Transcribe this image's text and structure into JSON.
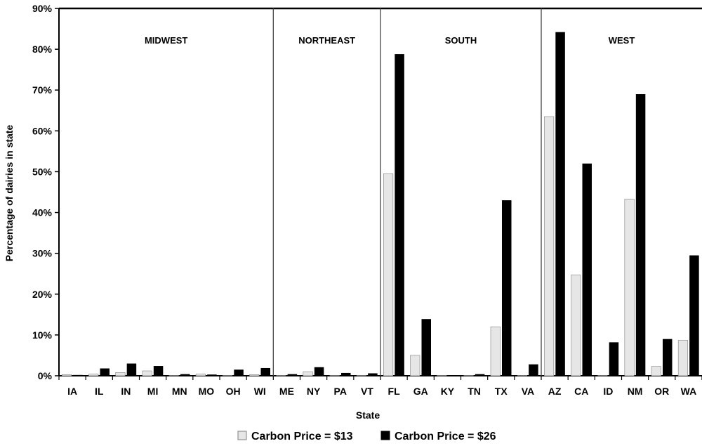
{
  "chart_data": {
    "type": "bar",
    "title": "",
    "xlabel": "State",
    "ylabel": "Percentage of dairies in state",
    "ylim": [
      0,
      90
    ],
    "yticks": [
      "0%",
      "10%",
      "20%",
      "30%",
      "40%",
      "50%",
      "60%",
      "70%",
      "80%",
      "90%"
    ],
    "grid": false,
    "legend_position": "bottom",
    "categories": [
      "IA",
      "IL",
      "IN",
      "MI",
      "MN",
      "MO",
      "OH",
      "WI",
      "ME",
      "NY",
      "PA",
      "VT",
      "FL",
      "GA",
      "KY",
      "TN",
      "TX",
      "VA",
      "AZ",
      "CA",
      "ID",
      "NM",
      "OR",
      "WA"
    ],
    "regions": [
      {
        "name": "MIDWEST",
        "start": 0,
        "end": 7
      },
      {
        "name": "NORTHEAST",
        "start": 8,
        "end": 11
      },
      {
        "name": "SOUTH",
        "start": 12,
        "end": 17
      },
      {
        "name": "WEST",
        "start": 18,
        "end": 23
      }
    ],
    "series": [
      {
        "name": "Carbon Price = $13",
        "color": "#e6e6e6",
        "stroke": "#808080",
        "values": [
          0.3,
          0.4,
          0.8,
          1.2,
          0.1,
          0.4,
          0.1,
          0.3,
          0.1,
          1.0,
          0.1,
          0.1,
          49.5,
          5.0,
          0.1,
          0.1,
          12.0,
          0.1,
          63.5,
          24.7,
          0.1,
          43.3,
          2.3,
          8.7
        ]
      },
      {
        "name": "Carbon Price = $26",
        "color": "#000000",
        "stroke": "#000000",
        "values": [
          0.2,
          1.8,
          3.0,
          2.4,
          0.4,
          0.3,
          1.5,
          1.9,
          0.4,
          2.1,
          0.7,
          0.6,
          78.8,
          13.9,
          0.1,
          0.4,
          43.0,
          2.8,
          84.2,
          52.0,
          8.2,
          69.0,
          9.0,
          29.5
        ]
      }
    ]
  }
}
